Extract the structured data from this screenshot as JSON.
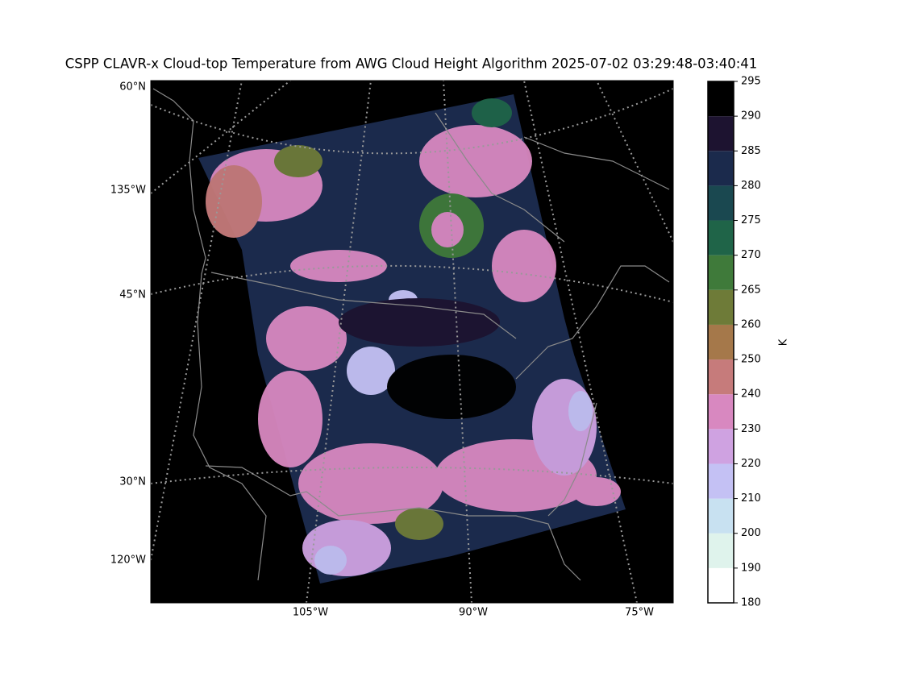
{
  "title": "CSPP CLAVR-x Cloud-top Temperature from AWG Cloud Height Algorithm 2025-07-02 03:29:48-03:40:41",
  "map": {
    "labels": [
      "60°N",
      "135°W",
      "45°N",
      "30°N",
      "120°W",
      "105°W",
      "90°W",
      "75°W"
    ]
  },
  "colorbar": {
    "label": "K",
    "ticks": [
      180,
      190,
      200,
      210,
      220,
      230,
      240,
      250,
      260,
      265,
      270,
      275,
      280,
      285,
      290,
      295
    ],
    "colors": [
      "#ffffff",
      "#dff3ec",
      "#c8e1f1",
      "#c4c1f4",
      "#cfa2e1",
      "#d888c0",
      "#c67b7b",
      "#a5784a",
      "#6e7b38",
      "#3f7a3a",
      "#1f6448",
      "#1a4850",
      "#1b2a4c",
      "#1d1330",
      "#000000"
    ]
  }
}
